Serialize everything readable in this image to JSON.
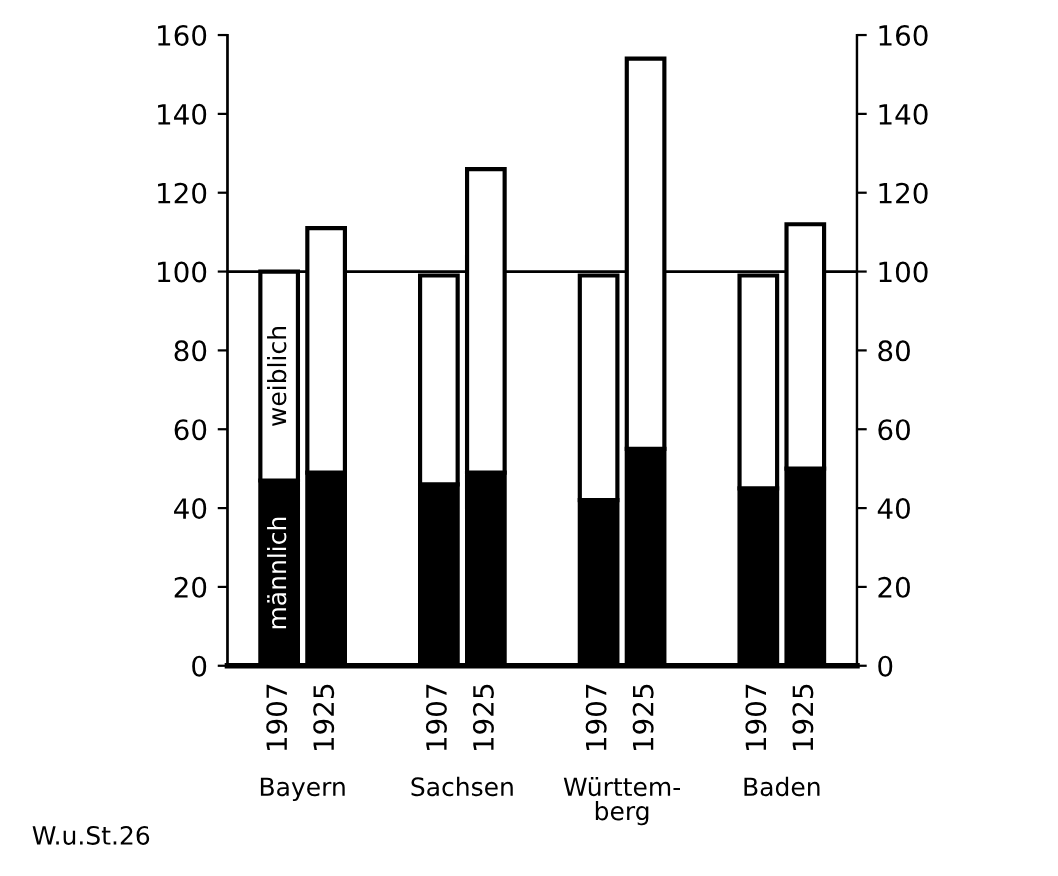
{
  "chart_data": {
    "type": "bar",
    "stacked": true,
    "categories": [
      "1907",
      "1925",
      "1907",
      "1925",
      "1907",
      "1925",
      "1907",
      "1925"
    ],
    "series": [
      {
        "name": "männlich",
        "color": "#000000",
        "values": [
          47,
          49,
          46,
          49,
          42,
          55,
          45,
          50
        ]
      },
      {
        "name": "weiblich",
        "color": "#ffffff",
        "values": [
          53,
          62,
          53,
          77,
          57,
          99,
          54,
          62
        ]
      }
    ],
    "ylim": [
      0,
      160
    ],
    "yticks": [
      0,
      20,
      40,
      60,
      80,
      100,
      120,
      140,
      160
    ],
    "y2lim": [
      0,
      160
    ],
    "y2ticks": [
      0,
      20,
      40,
      60,
      80,
      100,
      120,
      140,
      160
    ],
    "ref_lines": [
      {
        "axis": "y",
        "value": 100,
        "color": "#000000"
      }
    ],
    "annotations": [
      "Bayern",
      "Sachsen",
      "Württem-\nberg",
      "Baden",
      "W.u.St.26"
    ],
    "grid": false,
    "legend": false
  }
}
